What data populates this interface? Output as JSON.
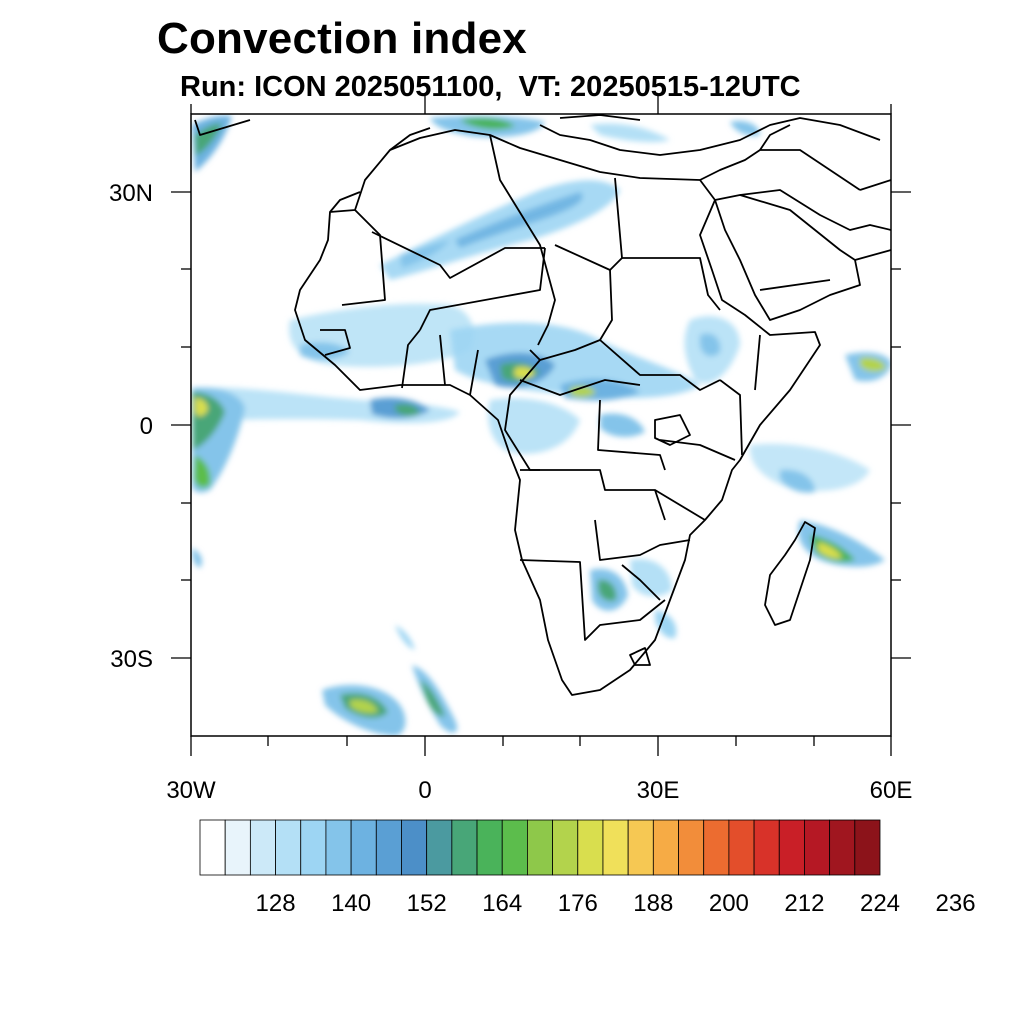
{
  "header": {
    "title": "Convection index",
    "subtitle": "Run: ICON 2025051100,  VT: 20250515-12UTC"
  },
  "map": {
    "region": "Africa",
    "lon_range": [
      -30,
      60
    ],
    "lat_range": [
      -40,
      40
    ],
    "x_ticks": [
      {
        "value": -30,
        "label": "30W"
      },
      {
        "value": 0,
        "label": "0"
      },
      {
        "value": 30,
        "label": "30E"
      },
      {
        "value": 60,
        "label": "60E"
      }
    ],
    "y_ticks": [
      {
        "value": 30,
        "label": "30N"
      },
      {
        "value": 0,
        "label": "0"
      },
      {
        "value": -30,
        "label": "30S"
      }
    ]
  },
  "colorbar": {
    "colors": [
      "#ffffff",
      "#e8f4fb",
      "#cce9f8",
      "#b4e0f6",
      "#9dd5f3",
      "#84c4ea",
      "#6db2e1",
      "#5a9fd4",
      "#4c8fc8",
      "#4b9aa0",
      "#48a678",
      "#4ab35a",
      "#5cbd4c",
      "#8ec84a",
      "#b3d34c",
      "#d9de4e",
      "#f0e05a",
      "#f6c853",
      "#f6ab45",
      "#f28d3a",
      "#ec6c30",
      "#e34e2b",
      "#d83229",
      "#c91f27",
      "#b51824",
      "#a0161f",
      "#8c131a"
    ],
    "labels": [
      "128",
      "140",
      "152",
      "164",
      "176",
      "188",
      "200",
      "212",
      "224",
      "236"
    ]
  }
}
